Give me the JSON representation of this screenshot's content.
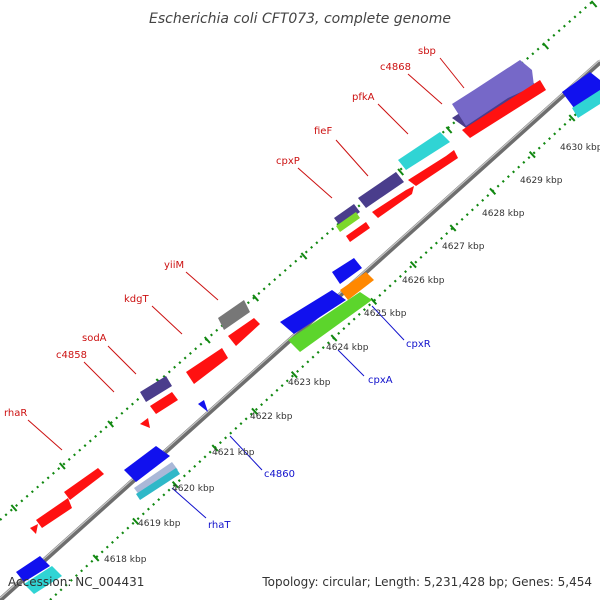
{
  "title": "Escherichia coli CFT073, complete genome",
  "footer": {
    "accession": "Accession: NC_004431",
    "summary": "Topology: circular; Length: 5,231,428 bp; Genes: 5,454"
  },
  "ticks": [
    "4618 kbp",
    "4619 kbp",
    "4620 kbp",
    "4621 kbp",
    "4622 kbp",
    "4623 kbp",
    "4624 kbp",
    "4625 kbp",
    "4626 kbp",
    "4627 kbp",
    "4628 kbp",
    "4629 kbp",
    "4630 kbp"
  ],
  "forward_labels": [
    "rhaR",
    "c4858",
    "sodA",
    "kdgT",
    "yiiM",
    "cpxP",
    "fieF",
    "pfkA",
    "c4868",
    "sbp"
  ],
  "reverse_labels": [
    "rhaT",
    "c4860",
    "cpxA",
    "cpxR"
  ],
  "colors": {
    "forward_gene": "#ff1111",
    "reverse_gene": "#1111ee",
    "backbone": "#888888",
    "tick_dots": "#118811"
  }
}
